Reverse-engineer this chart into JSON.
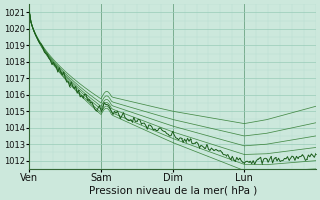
{
  "xlabel": "Pression niveau de la mer( hPa )",
  "bg_color": "#cce8dc",
  "grid_major_color": "#99ccb8",
  "grid_minor_color": "#b8ddd0",
  "line_color": "#1a5c1a",
  "line_color_light": "#2d7a2d",
  "ylim": [
    1011.5,
    1021.5
  ],
  "day_labels": [
    "Ven",
    "Sam",
    "Dim",
    "Lun"
  ],
  "yticks": [
    1012,
    1013,
    1014,
    1015,
    1016,
    1017,
    1018,
    1019,
    1020,
    1021
  ],
  "xlim": [
    0,
    4.0
  ]
}
